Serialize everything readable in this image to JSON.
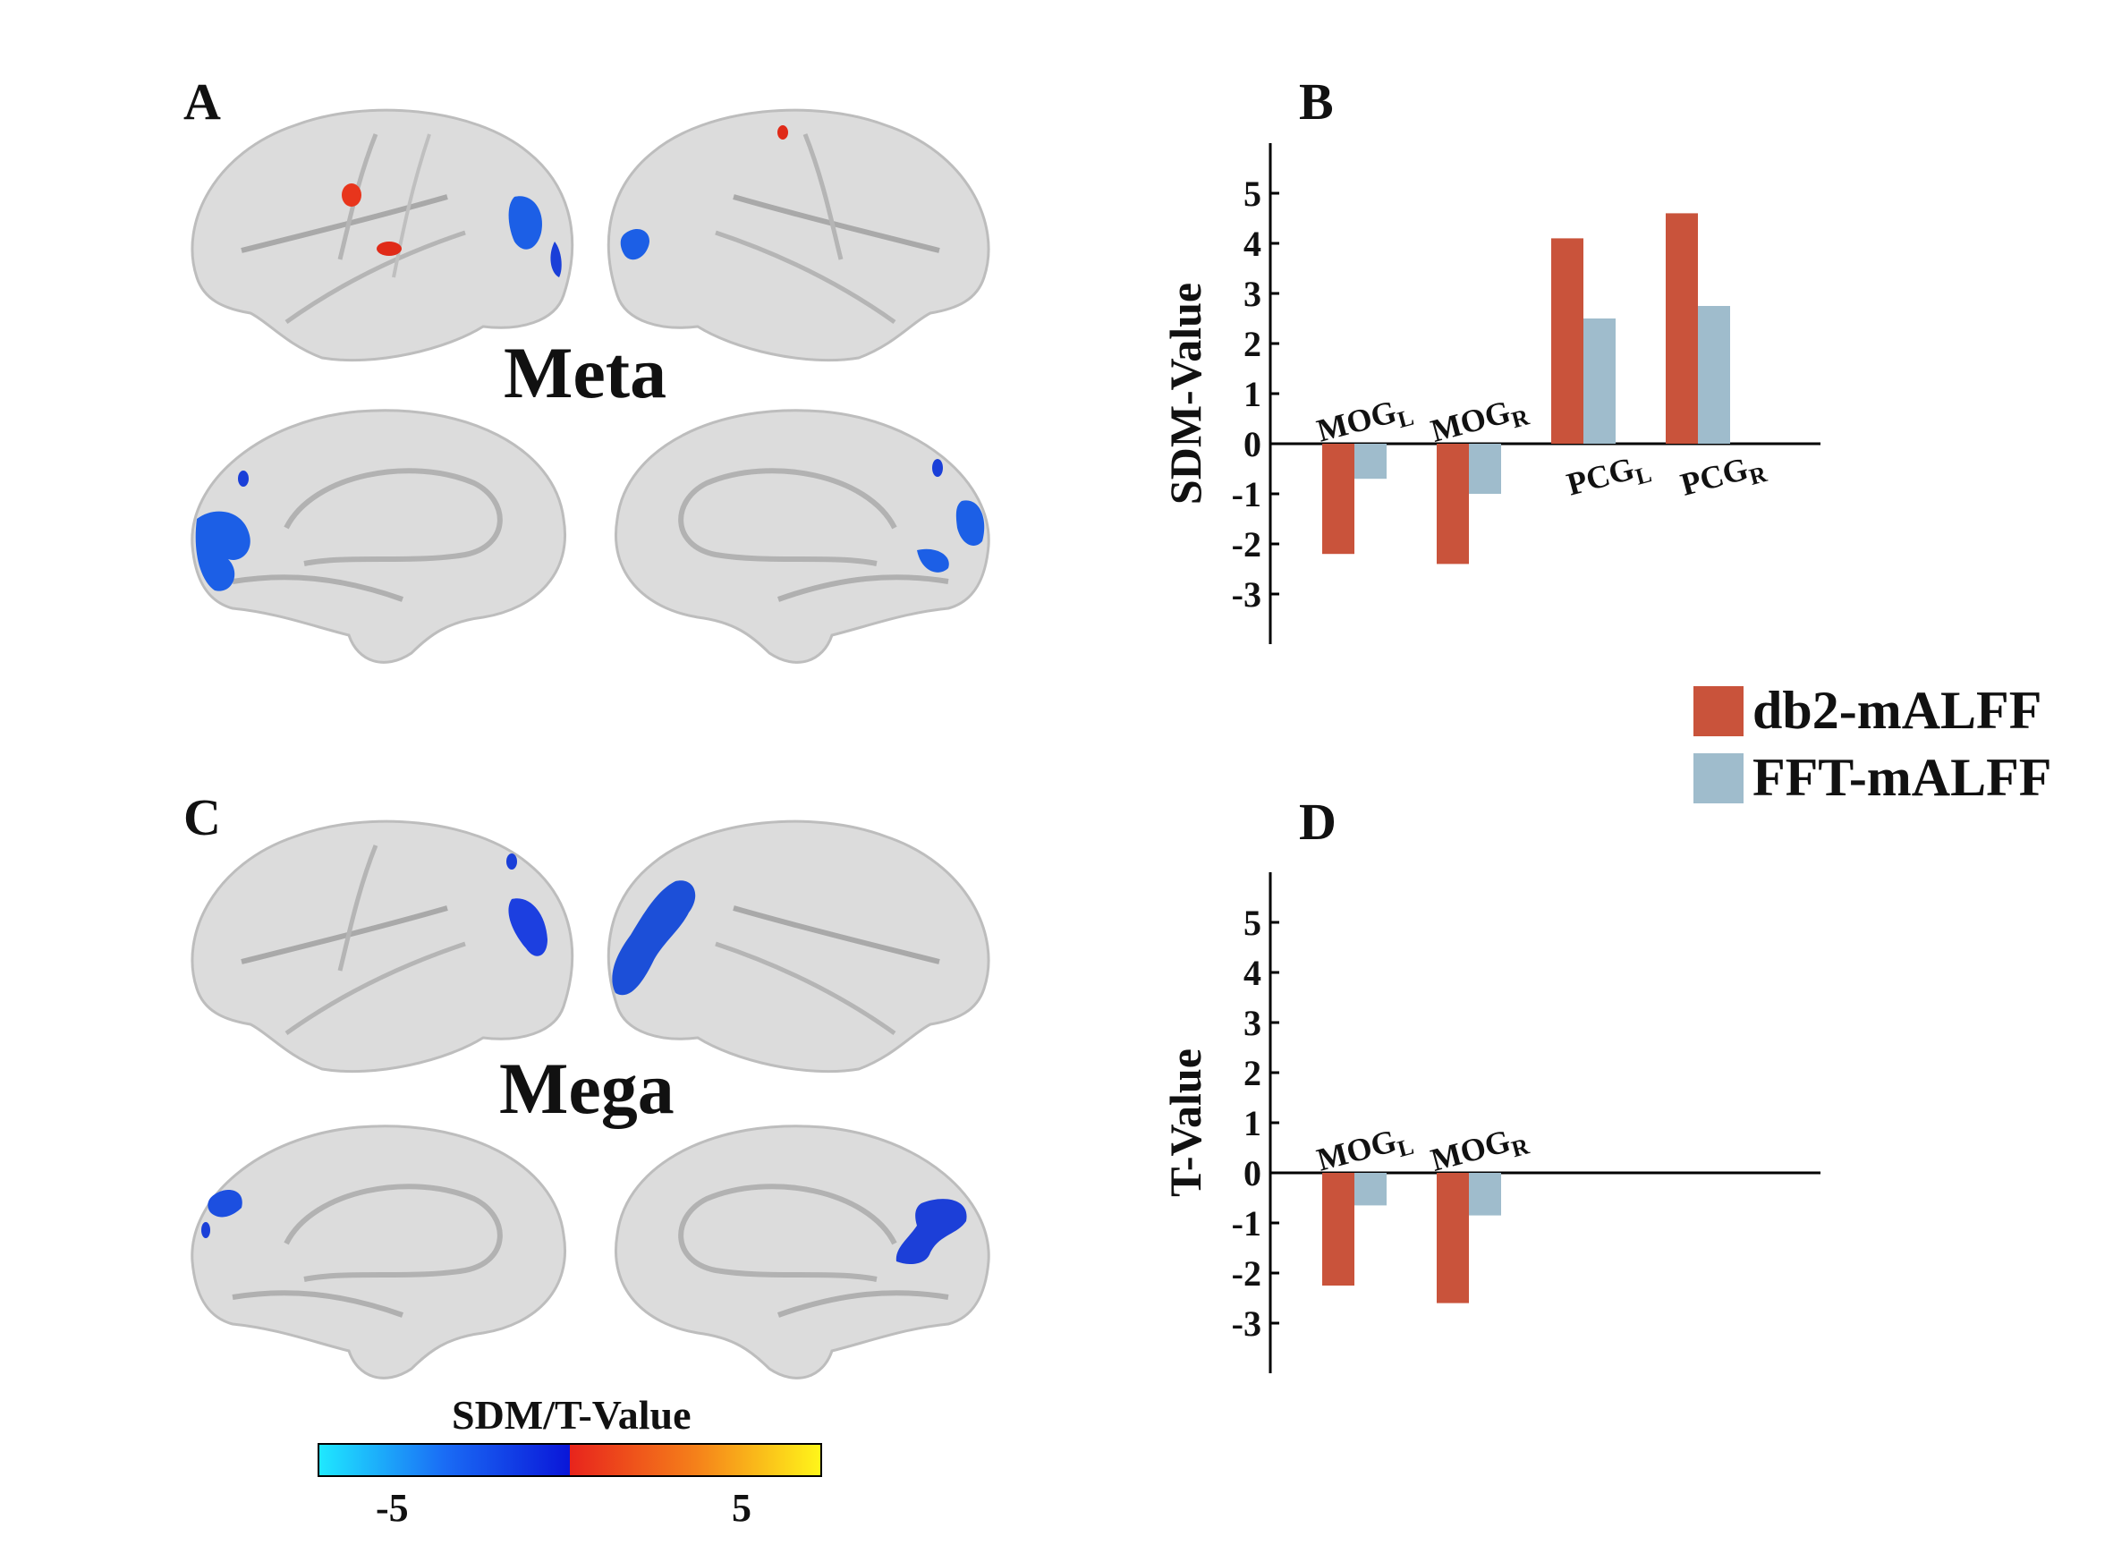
{
  "panels": {
    "a": "A",
    "b": "B",
    "c": "C",
    "d": "D",
    "meta_label": "Meta",
    "mega_label": "Mega"
  },
  "legend": {
    "db2": {
      "label": "db2-mALFF",
      "color": "#c9533b"
    },
    "fft": {
      "label": "FFT-mALFF",
      "color": "#9fbccc"
    }
  },
  "colorbar": {
    "title": "SDM/T-Value",
    "ticks": [
      "-5",
      "5"
    ],
    "colors": [
      "#1fe8ff",
      "#1a6cf5",
      "#0a16d8",
      "#e8241c",
      "#f5801a",
      "#fff51a"
    ]
  },
  "chart_data": [
    {
      "type": "bar",
      "panel": "B",
      "ylabel": "SDM-Value",
      "ylim": [
        -4,
        6
      ],
      "yticks": [
        "5",
        "4",
        "3",
        "2",
        "1",
        "0",
        "-1",
        "-2",
        "-3"
      ],
      "categories": [
        {
          "base": "MOG",
          "sub": "L"
        },
        {
          "base": "MOG",
          "sub": "R"
        },
        {
          "base": "PCG",
          "sub": "L"
        },
        {
          "base": "PCG",
          "sub": "R"
        }
      ],
      "series": [
        {
          "name": "db2-mALFF",
          "values": [
            -2.2,
            -2.4,
            4.1,
            4.6
          ]
        },
        {
          "name": "FFT-mALFF",
          "values": [
            -0.7,
            -1.0,
            2.5,
            2.75
          ]
        }
      ]
    },
    {
      "type": "bar",
      "panel": "D",
      "ylabel": "T-Value",
      "ylim": [
        -4,
        6
      ],
      "yticks": [
        "5",
        "4",
        "3",
        "2",
        "1",
        "0",
        "-1",
        "-2",
        "-3"
      ],
      "categories": [
        {
          "base": "MOG",
          "sub": "L"
        },
        {
          "base": "MOG",
          "sub": "R"
        }
      ],
      "series": [
        {
          "name": "db2-mALFF",
          "values": [
            -2.25,
            -2.6
          ]
        },
        {
          "name": "FFT-mALFF",
          "values": [
            -0.65,
            -0.85
          ]
        }
      ]
    }
  ]
}
